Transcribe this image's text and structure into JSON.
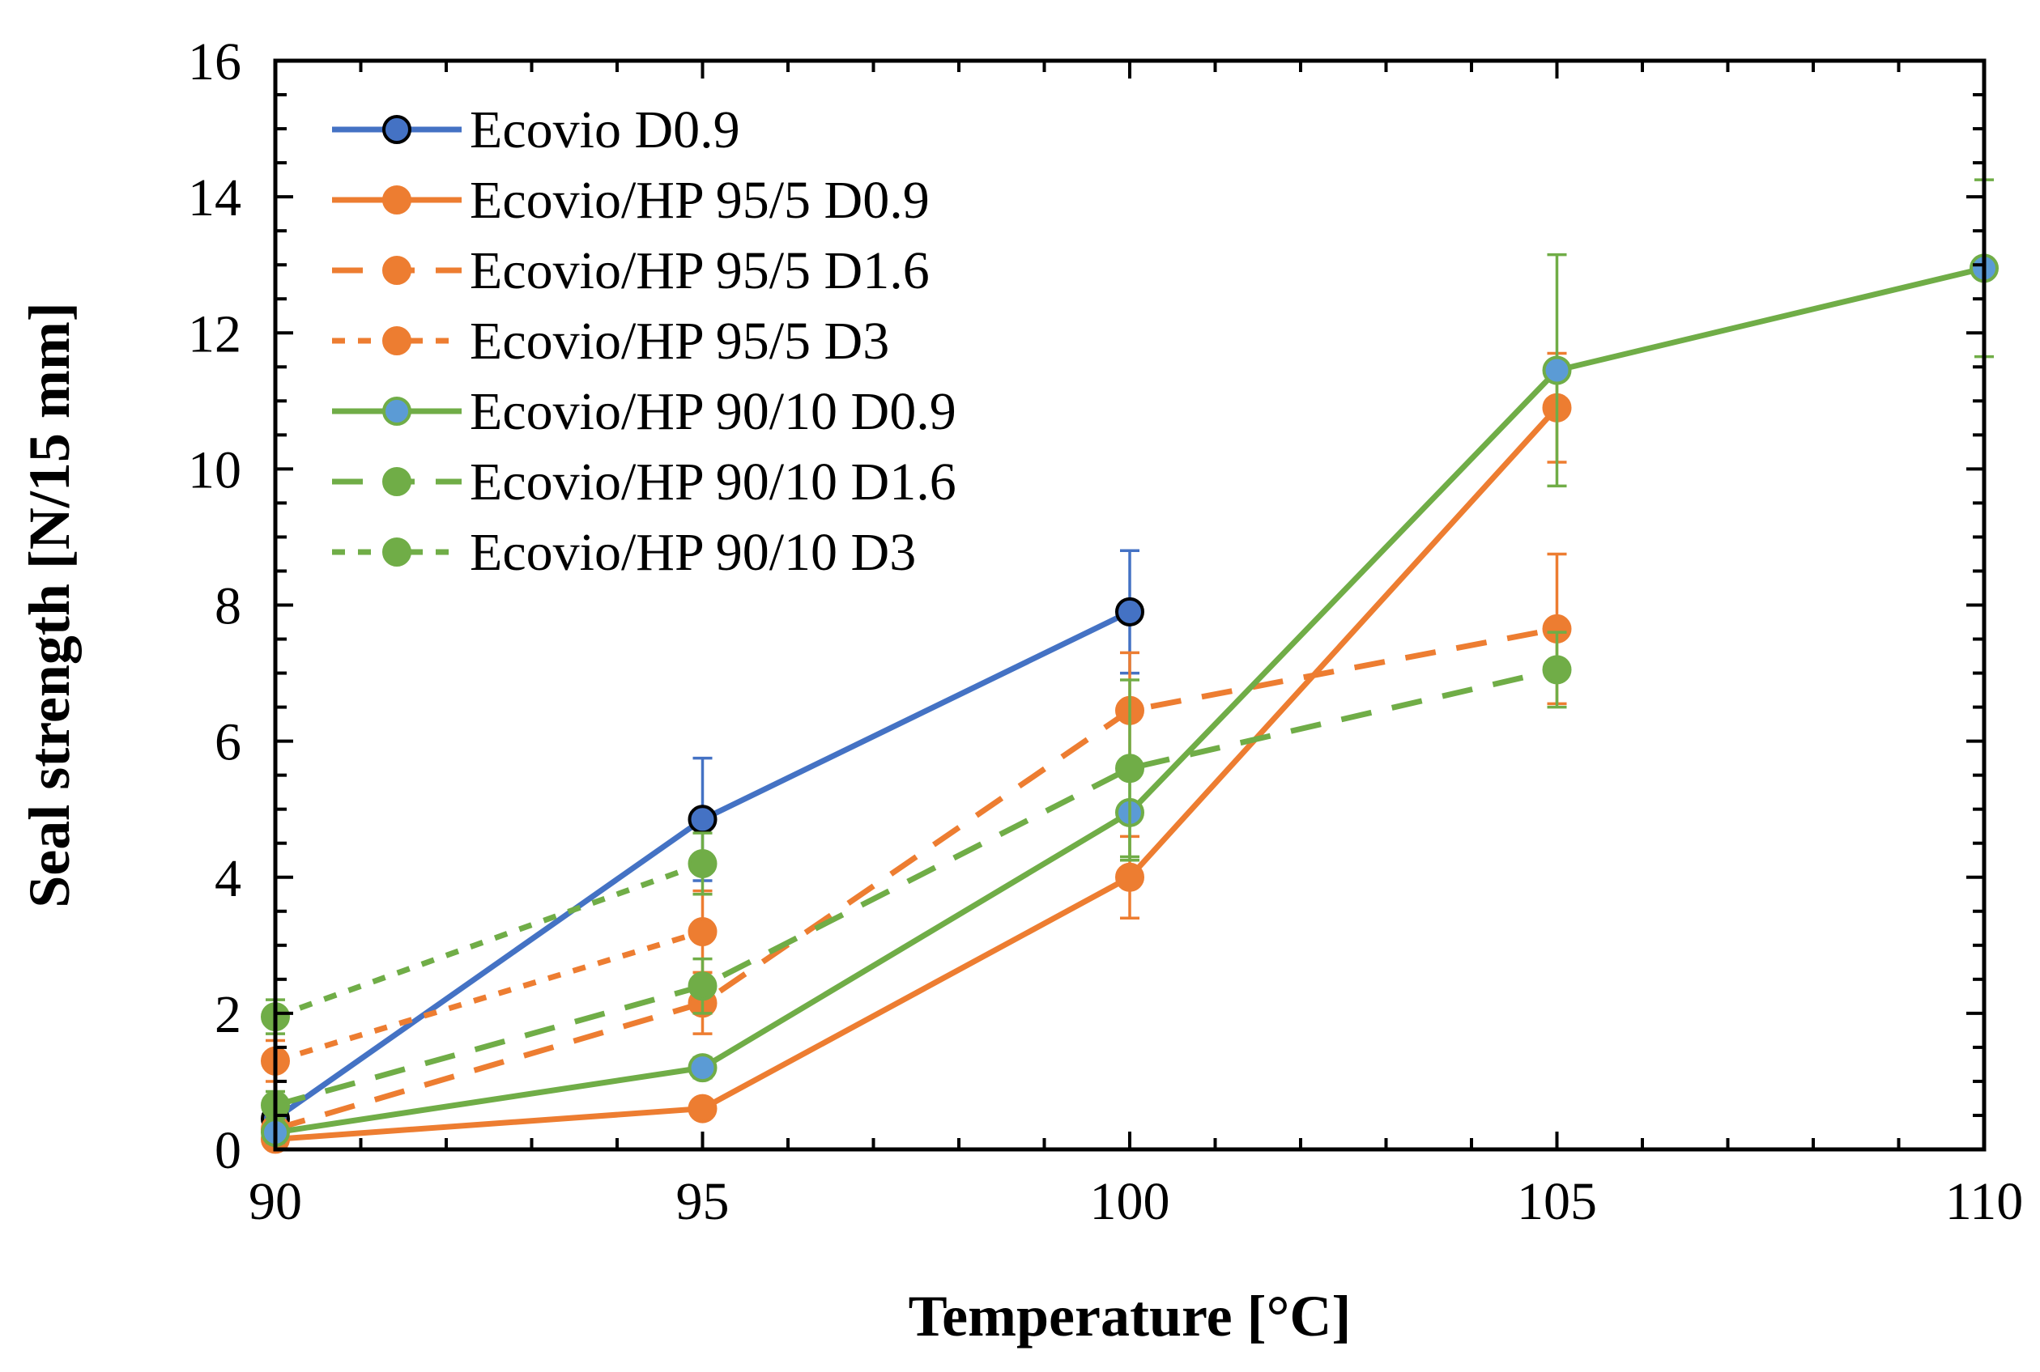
{
  "chart_data": {
    "type": "line",
    "title": "",
    "xlabel": "Temperature [°C]",
    "ylabel": "Seal strength [N/15 mm]",
    "xlim": [
      90,
      110
    ],
    "ylim": [
      0,
      16
    ],
    "x_ticks": [
      90,
      95,
      100,
      105,
      110
    ],
    "y_ticks": [
      0,
      2,
      4,
      6,
      8,
      10,
      12,
      14,
      16
    ],
    "x_minor_step": 1,
    "y_minor_step": 0.5,
    "grid": false,
    "legend_position": "top-left",
    "series": [
      {
        "name": "Ecovio D0.9",
        "color": "#4472C4",
        "marker_fill": "#4472C4",
        "marker_edge": "#000000",
        "dash": "solid",
        "points": [
          {
            "x": 90,
            "y": 0.45,
            "err": 0.3
          },
          {
            "x": 95,
            "y": 4.85,
            "err": 0.9
          },
          {
            "x": 100,
            "y": 7.9,
            "err": 0.9
          }
        ]
      },
      {
        "name": "Ecovio/HP 95/5 D0.9",
        "color": "#ED7D31",
        "marker_fill": "#ED7D31",
        "marker_edge": "#ED7D31",
        "dash": "solid",
        "points": [
          {
            "x": 90,
            "y": 0.15,
            "err": 0.1
          },
          {
            "x": 95,
            "y": 0.6,
            "err": 0.1
          },
          {
            "x": 100,
            "y": 4.0,
            "err": 0.6
          },
          {
            "x": 105,
            "y": 10.9,
            "err": 0.8
          }
        ]
      },
      {
        "name": "Ecovio/HP 95/5 D1.6",
        "color": "#ED7D31",
        "marker_fill": "#ED7D31",
        "marker_edge": "#ED7D31",
        "dash": "long",
        "points": [
          {
            "x": 90,
            "y": 0.3,
            "err": 0.2
          },
          {
            "x": 95,
            "y": 2.15,
            "err": 0.45
          },
          {
            "x": 100,
            "y": 6.45,
            "err": 0.85
          },
          {
            "x": 105,
            "y": 7.65,
            "err": 1.1
          }
        ]
      },
      {
        "name": "Ecovio/HP 95/5 D3",
        "color": "#ED7D31",
        "marker_fill": "#ED7D31",
        "marker_edge": "#ED7D31",
        "dash": "short",
        "points": [
          {
            "x": 90,
            "y": 1.3,
            "err": 0.3
          },
          {
            "x": 95,
            "y": 3.2,
            "err": 0.6
          }
        ]
      },
      {
        "name": "Ecovio/HP 90/10 D0.9",
        "color": "#70AD47",
        "marker_fill": "#5B9BD5",
        "marker_edge": "#70AD47",
        "dash": "solid",
        "points": [
          {
            "x": 90,
            "y": 0.25,
            "err": 0.15
          },
          {
            "x": 95,
            "y": 1.2,
            "err": 0.15
          },
          {
            "x": 100,
            "y": 4.95,
            "err": 0.7
          },
          {
            "x": 105,
            "y": 11.45,
            "err": 1.7
          },
          {
            "x": 110,
            "y": 12.95,
            "err": 1.3
          }
        ]
      },
      {
        "name": "Ecovio/HP 90/10 D1.6",
        "color": "#70AD47",
        "marker_fill": "#70AD47",
        "marker_edge": "#70AD47",
        "dash": "long",
        "points": [
          {
            "x": 90,
            "y": 0.65,
            "err": 0.2
          },
          {
            "x": 95,
            "y": 2.4,
            "err": 0.4
          },
          {
            "x": 100,
            "y": 5.6,
            "err": 1.3
          },
          {
            "x": 105,
            "y": 7.05,
            "err": 0.55
          }
        ]
      },
      {
        "name": "Ecovio/HP 90/10 D3",
        "color": "#70AD47",
        "marker_fill": "#70AD47",
        "marker_edge": "#70AD47",
        "dash": "short",
        "points": [
          {
            "x": 90,
            "y": 1.95,
            "err": 0.25
          },
          {
            "x": 95,
            "y": 4.2,
            "err": 0.45
          }
        ]
      }
    ]
  }
}
